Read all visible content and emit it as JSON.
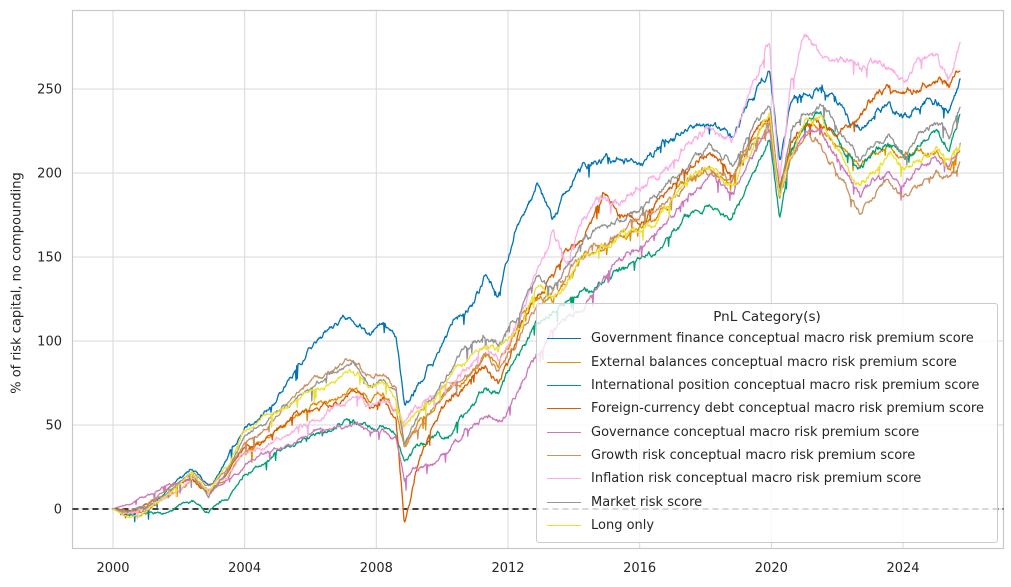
{
  "chart_data": {
    "type": "line",
    "title": "",
    "xlabel": "",
    "ylabel": "% of risk capital, no compounding",
    "x_ticks": [
      2000,
      2004,
      2008,
      2012,
      2016,
      2020,
      2024
    ],
    "y_ticks": [
      0,
      50,
      100,
      150,
      200,
      250
    ],
    "xlim": [
      1998.75,
      2027.05
    ],
    "ylim": [
      -23,
      296
    ],
    "grid": true,
    "grid_color": "#d9d9d9",
    "axes_edge_color": "#c8c8c8",
    "text_color": "#262626",
    "zero_line": {
      "y": 0,
      "style": "dashed",
      "color": "#000000"
    },
    "legend": {
      "title": "PnL Category(s)",
      "position": "lower right"
    },
    "x_unit": "year",
    "anchor_years": [
      2000.0,
      2000.5,
      2001.0,
      2001.5,
      2002.0,
      2002.4,
      2002.9,
      2003.5,
      2004.0,
      2004.5,
      2005.0,
      2005.5,
      2006.0,
      2006.5,
      2007.0,
      2007.3,
      2007.8,
      2008.2,
      2008.6,
      2008.85,
      2009.2,
      2009.7,
      2010.2,
      2010.7,
      2011.3,
      2011.7,
      2012.2,
      2012.9,
      2013.35,
      2013.8,
      2014.3,
      2014.9,
      2015.4,
      2016.0,
      2016.5,
      2017.0,
      2017.5,
      2018.1,
      2018.8,
      2019.3,
      2019.95,
      2020.25,
      2020.6,
      2021.0,
      2021.5,
      2022.0,
      2022.7,
      2023.2,
      2023.6,
      2024.0,
      2024.5,
      2025.0,
      2025.4,
      2025.75
    ],
    "series": [
      {
        "name": "Government finance conceptual macro risk premium score",
        "color": "#0173b2",
        "values": [
          0,
          -2,
          1,
          8,
          18,
          26,
          14,
          32,
          52,
          58,
          70,
          82,
          95,
          105,
          112,
          115,
          103,
          110,
          98,
          58,
          70,
          88,
          106,
          116,
          138,
          126,
          160,
          196,
          174,
          188,
          204,
          210,
          213,
          205,
          212,
          220,
          228,
          233,
          222,
          240,
          262,
          204,
          240,
          247,
          250,
          240,
          224,
          236,
          243,
          232,
          238,
          242,
          238,
          254
        ]
      },
      {
        "name": "External balances conceptual macro risk premium score",
        "color": "#de8f05",
        "values": [
          0,
          -3,
          -1,
          5,
          12,
          18,
          8,
          20,
          34,
          38,
          45,
          52,
          58,
          62,
          66,
          70,
          62,
          68,
          60,
          38,
          48,
          60,
          72,
          80,
          92,
          86,
          104,
          128,
          124,
          136,
          148,
          155,
          162,
          165,
          172,
          185,
          196,
          205,
          196,
          215,
          232,
          188,
          215,
          228,
          225,
          215,
          203,
          212,
          215,
          206,
          210,
          214,
          208,
          217
        ]
      },
      {
        "name": "International position conceptual macro risk premium score",
        "color": "#029e73",
        "values": [
          0,
          -4,
          -2,
          -3,
          2,
          5,
          -2,
          6,
          19,
          24,
          32,
          38,
          42,
          46,
          50,
          53,
          47,
          50,
          46,
          30,
          36,
          42,
          46,
          54,
          70,
          66,
          82,
          108,
          116,
          120,
          126,
          132,
          140,
          150,
          155,
          168,
          176,
          184,
          174,
          196,
          220,
          174,
          208,
          225,
          232,
          220,
          204,
          214,
          218,
          208,
          218,
          224,
          216,
          234
        ]
      },
      {
        "name": "Foreign-currency debt conceptual macro risk premium score",
        "color": "#d55e00",
        "values": [
          0,
          -2,
          2,
          6,
          14,
          18,
          10,
          22,
          35,
          40,
          48,
          52,
          56,
          60,
          64,
          67,
          58,
          64,
          52,
          -8,
          20,
          45,
          60,
          70,
          82,
          76,
          95,
          130,
          138,
          148,
          158,
          186,
          175,
          172,
          180,
          192,
          200,
          208,
          200,
          218,
          235,
          190,
          220,
          230,
          228,
          225,
          235,
          245,
          248,
          244,
          250,
          255,
          250,
          261
        ]
      },
      {
        "name": "Governance conceptual macro risk premium score",
        "color": "#cc78bc",
        "values": [
          0,
          4,
          8,
          14,
          16,
          20,
          12,
          20,
          27,
          32,
          36,
          38,
          40,
          44,
          48,
          50,
          44,
          46,
          42,
          19,
          26,
          32,
          38,
          48,
          60,
          56,
          70,
          95,
          110,
          115,
          122,
          138,
          148,
          158,
          164,
          176,
          186,
          196,
          186,
          205,
          225,
          185,
          210,
          222,
          225,
          210,
          186,
          198,
          202,
          194,
          202,
          208,
          204,
          220
        ]
      },
      {
        "name": "Growth risk conceptual macro risk premium score",
        "color": "#ca9161",
        "values": [
          0,
          -2,
          2,
          8,
          16,
          22,
          12,
          26,
          41,
          48,
          58,
          68,
          77,
          82,
          88,
          90,
          80,
          82,
          72,
          36,
          48,
          58,
          68,
          78,
          92,
          86,
          98,
          125,
          132,
          142,
          152,
          158,
          165,
          170,
          174,
          184,
          194,
          202,
          194,
          212,
          228,
          186,
          212,
          224,
          220,
          200,
          174,
          186,
          190,
          182,
          192,
          198,
          194,
          205
        ]
      },
      {
        "name": "Inflation risk conceptual macro risk premium score",
        "color": "#fbafe4",
        "values": [
          0,
          -2,
          1,
          6,
          12,
          16,
          8,
          18,
          31,
          36,
          42,
          46,
          50,
          56,
          62,
          65,
          58,
          62,
          56,
          48,
          56,
          65,
          75,
          85,
          98,
          92,
          108,
          148,
          168,
          152,
          172,
          186,
          182,
          190,
          196,
          208,
          218,
          226,
          215,
          240,
          277,
          192,
          255,
          278,
          270,
          266,
          262,
          266,
          264,
          256,
          264,
          272,
          258,
          281
        ]
      },
      {
        "name": "Market risk score",
        "color": "#949494",
        "values": [
          0,
          -3,
          0,
          7,
          15,
          21,
          10,
          24,
          44,
          50,
          58,
          64,
          71,
          76,
          82,
          84,
          74,
          78,
          68,
          36,
          50,
          64,
          82,
          92,
          104,
          98,
          110,
          135,
          128,
          140,
          155,
          162,
          170,
          178,
          184,
          196,
          206,
          215,
          202,
          222,
          240,
          188,
          222,
          235,
          238,
          222,
          202,
          218,
          222,
          212,
          222,
          228,
          224,
          240
        ]
      },
      {
        "name": "Long only",
        "color": "#ece133",
        "values": [
          0,
          -5,
          -2,
          6,
          15,
          22,
          10,
          26,
          47,
          54,
          60,
          66,
          72,
          76,
          80,
          82,
          72,
          76,
          64,
          50,
          58,
          66,
          78,
          88,
          100,
          94,
          106,
          130,
          122,
          134,
          148,
          155,
          162,
          168,
          174,
          186,
          196,
          204,
          194,
          214,
          232,
          186,
          215,
          230,
          234,
          215,
          194,
          206,
          210,
          200,
          206,
          212,
          206,
          212
        ]
      }
    ]
  }
}
